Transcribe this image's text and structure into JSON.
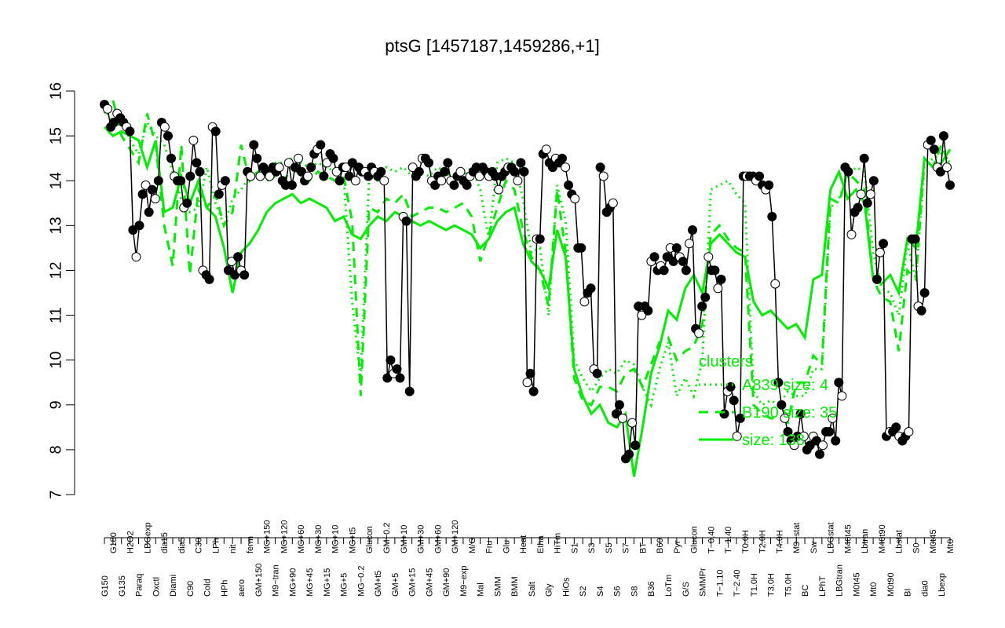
{
  "chart_data": {
    "type": "line",
    "title": "ptsG [1457187,1459286,+1]",
    "xlabel": "",
    "ylabel": "",
    "ylim": [
      7,
      16
    ],
    "yticks": [
      7,
      8,
      9,
      10,
      11,
      12,
      13,
      14,
      15,
      16
    ],
    "grid": false,
    "x_labels": [
      "G150",
      "G180",
      "G135",
      "H2O2",
      "Paraq",
      "LBGexp",
      "Oxctl",
      "dia15",
      "Diami",
      "dia5",
      "C90",
      "C30",
      "Cold",
      "LPh",
      "HPh",
      "nit",
      "aero",
      "ferm",
      "GM+150",
      "MG+150",
      "M9−tran",
      "MG+120",
      "MG+90",
      "MG+60",
      "MG+45",
      "MG+30",
      "MG+15",
      "MG+10",
      "MG+5",
      "MG+t5",
      "MG−0.2",
      "Glucon",
      "GM+t5",
      "GM−0.2",
      "GM+5",
      "GM+10",
      "GM+15",
      "GM+30",
      "GM+45",
      "GM+60",
      "GM+90",
      "GM+120",
      "M9−exp",
      "M/G",
      "Mal",
      "Fru",
      "SMM",
      "Glu",
      "BMM",
      "Heat",
      "Salt",
      "Etha",
      "Gly",
      "HiTm",
      "HiOs",
      "S1",
      "S2",
      "S3",
      "S4",
      "S5",
      "S6",
      "S7",
      "S8",
      "BT",
      "B36",
      "B60",
      "LoTm",
      "Pyr",
      "G/S",
      "Glucon",
      "SMMPr",
      "T−0.40",
      "T−1.10",
      "T−1.40",
      "T−2.40",
      "T0.0H",
      "T1.0H",
      "T2.0H",
      "T3.0H",
      "T4.0H",
      "T5.0H",
      "M9−stat",
      "BC",
      "Sw",
      "LPhT",
      "LBGstat",
      "LBGtran",
      "M40t45",
      "M0t45",
      "Lbtran",
      "Mt0",
      "M40t90",
      "M0t90",
      "Lbstat",
      "BI",
      "S0",
      "dia0",
      "M0t45",
      "Lbexp",
      "Mt0"
    ],
    "series": [
      {
        "name": "",
        "style": "points",
        "values": [
          15.7,
          15.6,
          15.2,
          15.3,
          15.5,
          15.4,
          15.3,
          15.2,
          15.1,
          12.9,
          12.3,
          13.0,
          13.7,
          13.9,
          13.3,
          13.8,
          13.6,
          14.0,
          15.3,
          15.2,
          15.0,
          14.5,
          14.1,
          14.0,
          14.0,
          13.4,
          13.5,
          14.1,
          14.9,
          14.4,
          14.2,
          12.0,
          11.9,
          11.8,
          15.2,
          15.1,
          13.7,
          13.9,
          14.0,
          12.0,
          12.2,
          11.9,
          12.3,
          12.0,
          11.9,
          14.2,
          14.1,
          14.8,
          14.5,
          14.1,
          14.3,
          14.2,
          14.1,
          14.3,
          14.2,
          14.3,
          14.0,
          13.9,
          14.4,
          13.9,
          14.3,
          14.5,
          14.2,
          14.0,
          14.1,
          14.3,
          14.6,
          14.7,
          14.8,
          14.1,
          14.4,
          14.6,
          14.5,
          14.2,
          14.0,
          14.3,
          14.3,
          14.1,
          14.4,
          14.0,
          14.3,
          14.2,
          14.2,
          14.1,
          14.3,
          14.2,
          14.1,
          14.2,
          14.0,
          9.6,
          10.0,
          9.7,
          9.8,
          9.6,
          13.2,
          13.1,
          9.3,
          14.3,
          14.1,
          14.2,
          14.5,
          14.5,
          14.4,
          14.0,
          13.9,
          14.1,
          14.0,
          14.2,
          14.4,
          14.0,
          13.9,
          14.1,
          14.2,
          14.0,
          13.9,
          14.1,
          14.2,
          14.3,
          14.1,
          14.3,
          14.2,
          14.1,
          14.2,
          14.1,
          13.8,
          14.1,
          14.2,
          14.3,
          14.3,
          14.2,
          14.0,
          14.4,
          14.2,
          9.5,
          9.7,
          9.3,
          12.7,
          12.7,
          14.6,
          14.7,
          14.4,
          14.3,
          14.5,
          14.4,
          14.5,
          14.3,
          13.9,
          13.7,
          13.6,
          12.5,
          12.5,
          11.3,
          11.5,
          11.6,
          9.8,
          9.7,
          14.3,
          14.1,
          13.3,
          13.4,
          13.5,
          8.8,
          9.0,
          8.7,
          7.8,
          7.9,
          8.6,
          8.1,
          11.2,
          11.0,
          11.2,
          11.1,
          12.2,
          12.3,
          12.0,
          12.1,
          12.0,
          12.3,
          12.5,
          12.2,
          12.5,
          12.3,
          12.2,
          12.0,
          12.6,
          12.9,
          10.7,
          10.6,
          11.2,
          11.4,
          12.3,
          12.0,
          12.0,
          11.6,
          11.8,
          8.8,
          9.3,
          9.4,
          9.1,
          8.3,
          8.7,
          14.1,
          14.1,
          14.1,
          14.1,
          14.0,
          14.1,
          13.9,
          13.8,
          13.9,
          13.2,
          11.7,
          9.5,
          9.0,
          8.7,
          8.4,
          8.2,
          8.1,
          8.3,
          8.8,
          8.3,
          8.0,
          8.1,
          8.3,
          8.2,
          7.9,
          8.1,
          8.4,
          8.4,
          8.7,
          8.2,
          9.5,
          9.2,
          14.3,
          14.2,
          12.8,
          13.3,
          13.4,
          13.7,
          14.5,
          13.5,
          13.7,
          14.0,
          11.8,
          12.4,
          12.6,
          8.3,
          8.4,
          8.4,
          8.5,
          8.3,
          8.2,
          8.3,
          8.4,
          12.7,
          12.7,
          11.2,
          11.1,
          11.5,
          14.8,
          14.9,
          14.7,
          14.3,
          14.2,
          15.0,
          14.3,
          13.9
        ]
      },
      {
        "name": "A839 size: 4",
        "style": "dotted",
        "values": [
          15.6,
          15.3,
          15.4,
          14.9,
          14.6,
          15.3,
          15.0,
          14.8,
          14.2,
          13.6,
          13.3,
          13.4,
          14.3,
          13.5,
          13.0,
          13.6,
          13.8,
          14.1,
          14.2,
          14.3,
          14.4,
          14.4,
          14.5,
          14.4,
          14.3,
          14.4,
          14.3,
          14.2,
          14.1,
          11.3,
          9.6,
          14.1,
          14.0,
          14.3,
          14.2,
          14.3,
          14.1,
          14.2,
          14.1,
          14.3,
          14.2,
          14.0,
          14.1,
          14.3,
          13.8,
          12.7,
          14.4,
          14.5,
          14.4,
          13.6,
          12.4,
          12.5,
          11.0,
          13.9,
          13.1,
          10.0,
          9.6,
          9.3,
          9.6,
          9.8,
          9.7,
          10.0,
          9.9,
          9.4,
          9.0,
          9.8,
          10.4,
          9.2,
          9.6,
          9.2,
          10.0,
          13.8,
          13.9,
          14.0,
          13.7,
          13.5,
          9.3,
          9.0,
          9.1,
          9.0,
          9.3,
          9.2,
          9.2,
          9.8,
          9.8,
          13.4,
          13.6,
          14.1,
          14.3,
          14.2,
          12.4,
          11.6,
          11.5,
          11.0,
          12.6,
          11.8,
          14.3,
          14.5,
          14.6,
          14.4
        ]
      },
      {
        "name": "B190 size: 35",
        "style": "dashed",
        "values": [
          15.5,
          15.8,
          15.0,
          14.7,
          14.4,
          15.5,
          14.8,
          13.0,
          12.1,
          14.8,
          11.9,
          13.8,
          13.4,
          13.7,
          13.0,
          13.3,
          14.8,
          14.0,
          14.2,
          14.0,
          14.1,
          14.0,
          14.3,
          14.1,
          14.0,
          14.2,
          14.1,
          14.0,
          14.1,
          13.1,
          9.2,
          13.4,
          13.3,
          13.6,
          13.5,
          13.7,
          13.2,
          13.3,
          13.4,
          13.4,
          13.3,
          13.4,
          13.5,
          13.2,
          12.2,
          12.8,
          13.4,
          14.0,
          13.8,
          12.9,
          12.3,
          12.0,
          11.2,
          13.8,
          12.4,
          9.6,
          9.1,
          9.0,
          9.4,
          9.4,
          9.3,
          9.7,
          9.8,
          9.4,
          9.9,
          10.4,
          10.5,
          10.0,
          10.2,
          10.3,
          10.8,
          12.8,
          13.0,
          12.7,
          12.5,
          12.4,
          9.0,
          8.8,
          8.7,
          8.7,
          8.6,
          9.5,
          9.5,
          10.1,
          9.9,
          13.6,
          13.5,
          14.2,
          14.0,
          13.8,
          11.8,
          11.4,
          11.3,
          10.2,
          12.0,
          11.8,
          14.5,
          14.3,
          14.8,
          14.3
        ]
      },
      {
        "name": "size: 138",
        "style": "solid",
        "values": [
          15.2,
          15.0,
          15.1,
          15.0,
          14.9,
          14.3,
          14.9,
          13.3,
          13.4,
          14.1,
          13.5,
          14.0,
          13.4,
          13.2,
          12.5,
          11.5,
          12.4,
          12.6,
          12.9,
          13.3,
          13.5,
          13.6,
          13.7,
          13.5,
          13.6,
          13.5,
          13.4,
          13.1,
          13.2,
          12.8,
          12.7,
          13.0,
          13.2,
          13.1,
          13.3,
          13.2,
          13.1,
          13.0,
          13.1,
          13.0,
          12.9,
          13.0,
          12.9,
          12.8,
          12.5,
          12.7,
          13.1,
          13.3,
          13.4,
          12.6,
          12.2,
          12.0,
          11.6,
          12.9,
          12.3,
          9.8,
          9.2,
          8.8,
          9.0,
          8.6,
          8.5,
          8.8,
          7.4,
          8.5,
          9.7,
          10.3,
          11.1,
          10.9,
          11.6,
          11.9,
          11.5,
          12.6,
          12.8,
          12.6,
          12.4,
          12.3,
          11.3,
          11.0,
          11.1,
          10.9,
          10.7,
          10.8,
          10.5,
          11.8,
          11.9,
          13.8,
          14.2,
          13.6,
          13.8,
          13.5,
          11.8,
          11.7,
          11.9,
          11.5,
          12.7,
          12.5,
          14.5,
          14.3,
          14.4,
          14.7
        ]
      }
    ],
    "legend": {
      "title": "clusters",
      "placement": "right",
      "entries": [
        "A839 size: 4",
        "B190 size: 35",
        "size: 138"
      ]
    },
    "colors": {
      "points": "#000000",
      "cluster_lines": "#00ee00",
      "axis": "#000000"
    }
  }
}
